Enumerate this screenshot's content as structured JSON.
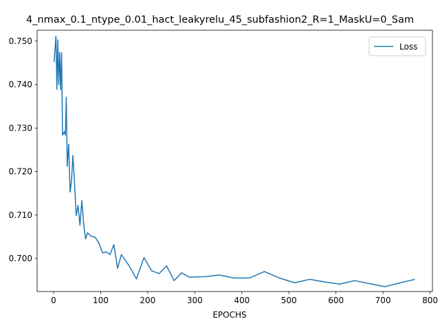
{
  "chart_data": {
    "type": "line",
    "title": "4_nmax_0.1_ntype_0.01_hact_leakyrelu_45_subfashion2_R=1_MaskU=0_Sam",
    "xlabel": "EPOCHS",
    "ylabel": "",
    "xlim": [
      -35,
      805
    ],
    "ylim": [
      0.6924,
      0.7525
    ],
    "xticks": [
      0,
      100,
      200,
      300,
      400,
      500,
      600,
      700,
      800
    ],
    "xtick_labels": [
      "0",
      "100",
      "200",
      "300",
      "400",
      "500",
      "600",
      "700",
      "800"
    ],
    "yticks": [
      0.7,
      0.71,
      0.72,
      0.73,
      0.74,
      0.75
    ],
    "ytick_labels": [
      "0.700",
      "0.710",
      "0.720",
      "0.730",
      "0.740",
      "0.750"
    ],
    "grid": false,
    "legend_position": "top-right",
    "series": [
      {
        "name": "Loss",
        "color": "#1f77b4",
        "x": [
          1,
          3,
          5,
          7,
          9,
          11,
          13,
          15,
          17,
          19,
          21,
          23,
          25,
          27,
          29,
          32,
          35,
          38,
          41,
          44,
          48,
          52,
          56,
          60,
          64,
          68,
          72,
          80,
          88,
          96,
          104,
          112,
          120,
          128,
          136,
          144,
          160,
          176,
          192,
          208,
          224,
          240,
          256,
          272,
          288,
          320,
          352,
          384,
          416,
          448,
          480,
          512,
          544,
          576,
          608,
          640,
          672,
          704,
          736,
          768
        ],
        "values": [
          0.7452,
          0.7482,
          0.7511,
          0.7389,
          0.7503,
          0.74,
          0.7474,
          0.7388,
          0.7473,
          0.7284,
          0.7287,
          0.7292,
          0.7284,
          0.7371,
          0.7212,
          0.7263,
          0.7153,
          0.7177,
          0.7237,
          0.7185,
          0.7099,
          0.7122,
          0.7076,
          0.7133,
          0.7078,
          0.7045,
          0.7059,
          0.7051,
          0.7049,
          0.7036,
          0.7013,
          0.7015,
          0.7009,
          0.7032,
          0.6977,
          0.7009,
          0.6984,
          0.6953,
          0.7002,
          0.6972,
          0.6965,
          0.6983,
          0.6949,
          0.6967,
          0.6957,
          0.6958,
          0.6962,
          0.6955,
          0.6955,
          0.697,
          0.6955,
          0.6944,
          0.6952,
          0.6946,
          0.6941,
          0.6949,
          0.6942,
          0.6935,
          0.6944,
          0.6952
        ]
      }
    ]
  }
}
